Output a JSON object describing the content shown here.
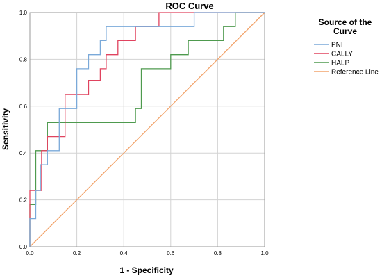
{
  "chart_data": {
    "type": "line",
    "title": "ROC Curve",
    "xlabel": "1 - Specificity",
    "ylabel": "Sensitivity",
    "xlim": [
      0,
      1
    ],
    "ylim": [
      0,
      1
    ],
    "xticks": [
      "0.0",
      "0.2",
      "0.4",
      "0.6",
      "0.8",
      "1.0"
    ],
    "yticks": [
      "0.0",
      "0.2",
      "0.4",
      "0.6",
      "0.8",
      "1.0"
    ],
    "grid": true,
    "legend": {
      "title_line1": "Source of the",
      "title_line2": "Curve",
      "placement": "right"
    },
    "series": [
      {
        "name": "PNI",
        "color": "#7aa9d9",
        "points": [
          [
            0,
            0
          ],
          [
            0,
            0.12
          ],
          [
            0.025,
            0.12
          ],
          [
            0.025,
            0.24
          ],
          [
            0.045,
            0.24
          ],
          [
            0.045,
            0.35
          ],
          [
            0.075,
            0.35
          ],
          [
            0.075,
            0.41
          ],
          [
            0.125,
            0.41
          ],
          [
            0.125,
            0.59
          ],
          [
            0.2,
            0.59
          ],
          [
            0.2,
            0.76
          ],
          [
            0.225,
            0.76
          ],
          [
            0.225,
            0.76
          ],
          [
            0.25,
            0.76
          ],
          [
            0.25,
            0.82
          ],
          [
            0.3,
            0.82
          ],
          [
            0.3,
            0.88
          ],
          [
            0.325,
            0.88
          ],
          [
            0.325,
            0.94
          ],
          [
            0.7,
            0.94
          ],
          [
            0.7,
            1.0
          ],
          [
            1.0,
            1.0
          ]
        ]
      },
      {
        "name": "CALLY",
        "color": "#e0435f",
        "points": [
          [
            0,
            0
          ],
          [
            0,
            0.24
          ],
          [
            0.05,
            0.24
          ],
          [
            0.05,
            0.41
          ],
          [
            0.075,
            0.41
          ],
          [
            0.075,
            0.47
          ],
          [
            0.15,
            0.47
          ],
          [
            0.15,
            0.65
          ],
          [
            0.25,
            0.65
          ],
          [
            0.25,
            0.71
          ],
          [
            0.3,
            0.71
          ],
          [
            0.3,
            0.76
          ],
          [
            0.325,
            0.76
          ],
          [
            0.325,
            0.82
          ],
          [
            0.375,
            0.82
          ],
          [
            0.375,
            0.88
          ],
          [
            0.45,
            0.88
          ],
          [
            0.45,
            0.94
          ],
          [
            0.55,
            0.94
          ],
          [
            0.55,
            1.0
          ],
          [
            1.0,
            1.0
          ]
        ]
      },
      {
        "name": "HALP",
        "color": "#4e9a4e",
        "points": [
          [
            0,
            0
          ],
          [
            0,
            0.18
          ],
          [
            0.025,
            0.18
          ],
          [
            0.025,
            0.41
          ],
          [
            0.075,
            0.41
          ],
          [
            0.075,
            0.53
          ],
          [
            0.45,
            0.53
          ],
          [
            0.45,
            0.59
          ],
          [
            0.475,
            0.59
          ],
          [
            0.475,
            0.76
          ],
          [
            0.6,
            0.76
          ],
          [
            0.6,
            0.82
          ],
          [
            0.675,
            0.82
          ],
          [
            0.675,
            0.88
          ],
          [
            0.825,
            0.88
          ],
          [
            0.825,
            0.94
          ],
          [
            0.875,
            0.94
          ],
          [
            0.875,
            1.0
          ],
          [
            1.0,
            1.0
          ]
        ]
      },
      {
        "name": "Reference Line",
        "color": "#f2a36b",
        "points": [
          [
            0,
            0
          ],
          [
            1,
            1
          ]
        ]
      }
    ]
  }
}
